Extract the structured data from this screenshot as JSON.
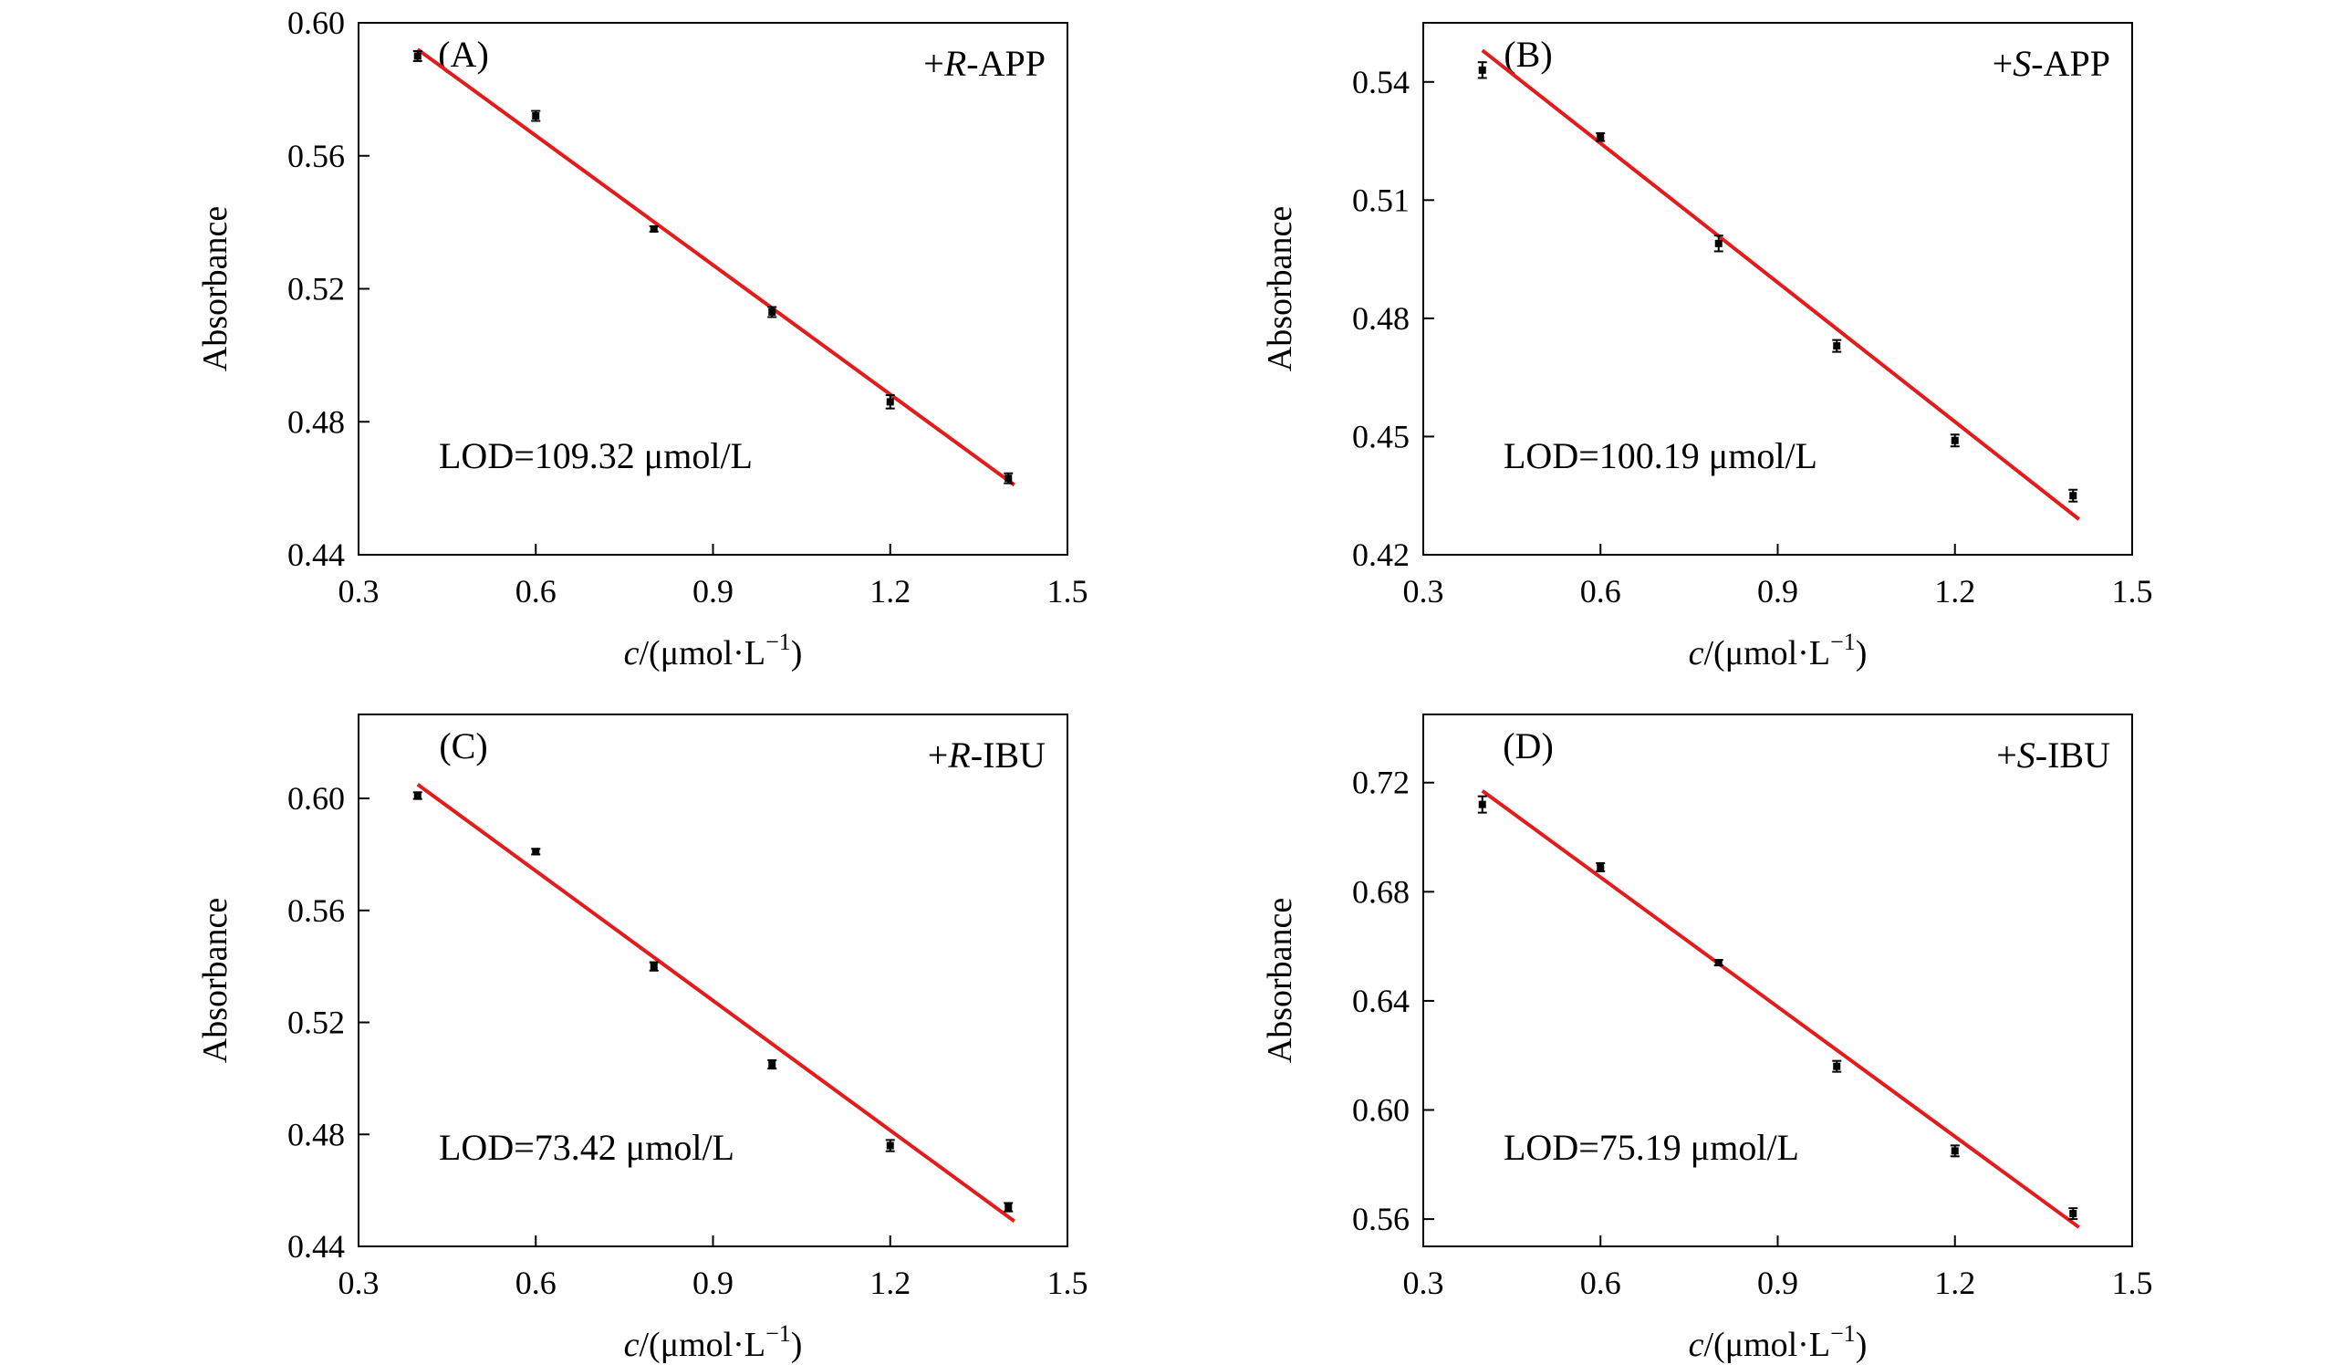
{
  "chart_data": [
    {
      "type": "scatter",
      "panel_label": "(A)",
      "annotation_prefix": "+",
      "annotation_italic": "R",
      "annotation_suffix": "-APP",
      "lod_text": "LOD=109.32 μmol/L",
      "xlabel_var": "c",
      "xlabel_unit": "/(μmol·L",
      "xlabel_sup": "−1",
      "xlabel_close": ")",
      "ylabel": "Absorbance",
      "xlim": [
        0.3,
        1.5
      ],
      "ylim": [
        0.44,
        0.6
      ],
      "xticks": [
        "0.3",
        "0.6",
        "0.9",
        "1.2",
        "1.5"
      ],
      "yticks": [
        "0.44",
        "0.48",
        "0.52",
        "0.56",
        "0.60"
      ],
      "x": [
        0.4,
        0.6,
        0.8,
        1.0,
        1.2,
        1.4
      ],
      "y": [
        0.59,
        0.572,
        0.538,
        0.513,
        0.486,
        0.463
      ],
      "yerr": [
        0.0015,
        0.0015,
        0.0008,
        0.0015,
        0.002,
        0.0015
      ],
      "fit": {
        "x": [
          0.4,
          1.41
        ],
        "y": [
          0.592,
          0.461
        ]
      },
      "point_color": "#000000",
      "fit_color": "#e31b1b"
    },
    {
      "type": "scatter",
      "panel_label": "(B)",
      "annotation_prefix": "+",
      "annotation_italic": "S",
      "annotation_suffix": "-APP",
      "lod_text": "LOD=100.19 μmol/L",
      "xlabel_var": "c",
      "xlabel_unit": "/(μmol·L",
      "xlabel_sup": "−1",
      "xlabel_close": ")",
      "ylabel": "Absorbance",
      "xlim": [
        0.3,
        1.5
      ],
      "ylim": [
        0.42,
        0.555
      ],
      "xticks": [
        "0.3",
        "0.6",
        "0.9",
        "1.2",
        "1.5"
      ],
      "yticks": [
        "0.42",
        "0.45",
        "0.48",
        "0.51",
        "0.54"
      ],
      "x": [
        0.4,
        0.6,
        0.8,
        1.0,
        1.2,
        1.4
      ],
      "y": [
        0.543,
        0.526,
        0.499,
        0.473,
        0.449,
        0.435
      ],
      "yerr": [
        0.002,
        0.001,
        0.002,
        0.0015,
        0.0015,
        0.0015
      ],
      "fit": {
        "x": [
          0.4,
          1.41
        ],
        "y": [
          0.548,
          0.429
        ]
      },
      "point_color": "#000000",
      "fit_color": "#e31b1b"
    },
    {
      "type": "scatter",
      "panel_label": "(C)",
      "annotation_prefix": "+",
      "annotation_italic": "R",
      "annotation_suffix": "-IBU",
      "lod_text": "LOD=73.42 μmol/L",
      "xlabel_var": "c",
      "xlabel_unit": "/(μmol·L",
      "xlabel_sup": "−1",
      "xlabel_close": ")",
      "ylabel": "Absorbance",
      "xlim": [
        0.3,
        1.5
      ],
      "ylim": [
        0.44,
        0.63
      ],
      "xticks": [
        "0.3",
        "0.6",
        "0.9",
        "1.2",
        "1.5"
      ],
      "yticks": [
        "0.44",
        "0.48",
        "0.52",
        "0.56",
        "0.60"
      ],
      "x": [
        0.4,
        0.6,
        0.8,
        1.0,
        1.2,
        1.4
      ],
      "y": [
        0.601,
        0.581,
        0.54,
        0.505,
        0.476,
        0.454
      ],
      "yerr": [
        0.0012,
        0.001,
        0.0015,
        0.0015,
        0.002,
        0.0015
      ],
      "fit": {
        "x": [
          0.4,
          1.41
        ],
        "y": [
          0.605,
          0.449
        ]
      },
      "point_color": "#000000",
      "fit_color": "#e31b1b"
    },
    {
      "type": "scatter",
      "panel_label": "(D)",
      "annotation_prefix": "+",
      "annotation_italic": "S",
      "annotation_suffix": "-IBU",
      "lod_text": "LOD=75.19 μmol/L",
      "xlabel_var": "c",
      "xlabel_unit": "/(μmol·L",
      "xlabel_sup": "−1",
      "xlabel_close": ")",
      "ylabel": "Absorbance",
      "xlim": [
        0.3,
        1.5
      ],
      "ylim": [
        0.55,
        0.745
      ],
      "xticks": [
        "0.3",
        "0.6",
        "0.9",
        "1.2",
        "1.5"
      ],
      "yticks": [
        "0.56",
        "0.60",
        "0.64",
        "0.68",
        "0.72"
      ],
      "x": [
        0.4,
        0.6,
        0.8,
        1.0,
        1.2,
        1.4
      ],
      "y": [
        0.712,
        0.689,
        0.654,
        0.616,
        0.585,
        0.562
      ],
      "yerr": [
        0.003,
        0.0015,
        0.001,
        0.002,
        0.002,
        0.002
      ],
      "fit": {
        "x": [
          0.4,
          1.41
        ],
        "y": [
          0.717,
          0.557
        ]
      },
      "point_color": "#000000",
      "fit_color": "#e31b1b"
    }
  ]
}
